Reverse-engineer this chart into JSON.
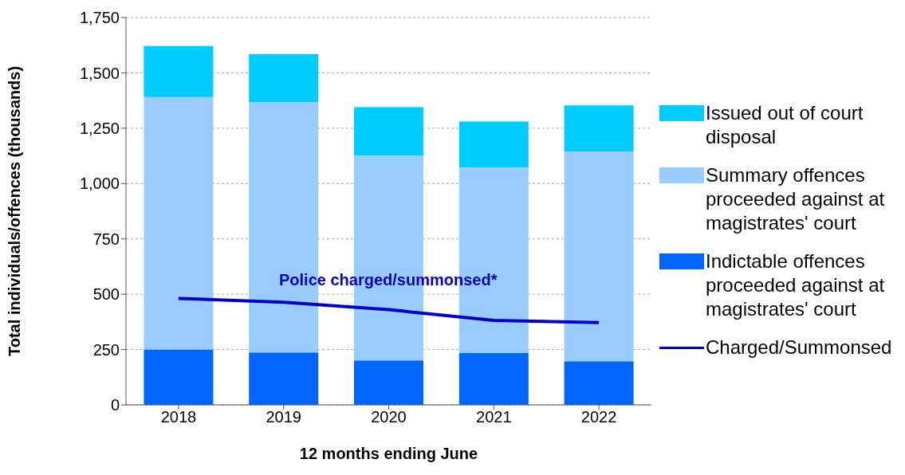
{
  "chart_data": {
    "type": "bar",
    "stacked": true,
    "xlabel": "12 months ending June",
    "ylabel": "Total individuals/offences (thousands)",
    "categories": [
      "2018",
      "2019",
      "2020",
      "2021",
      "2022"
    ],
    "series": [
      {
        "name": "Indictable offences proceeded against at magistrates' court",
        "color": "#0066ff",
        "values": [
          250,
          237,
          201,
          234,
          197
        ]
      },
      {
        "name": "Summary offences proceeded against at magistrates' court",
        "color": "#99ccff",
        "values": [
          1141,
          1130,
          926,
          839,
          948
        ]
      },
      {
        "name": "Issued out of court disposal",
        "color": "#00ccff",
        "values": [
          230,
          217,
          218,
          207,
          208
        ]
      },
      {
        "name": "Charged/Summonsed",
        "type": "line",
        "color": "#0000cc",
        "values": [
          481,
          464,
          430,
          382,
          372
        ]
      }
    ],
    "ylim": [
      0,
      1750
    ],
    "yticks": [
      0,
      250,
      500,
      750,
      {
        "value": 1000,
        "label": "1,000"
      },
      {
        "value": 1250,
        "label": "1,250"
      },
      {
        "value": 1500,
        "label": "1,500"
      },
      {
        "value": 1750,
        "label": "1,750"
      }
    ],
    "grid": "y",
    "legend": "right",
    "marker": "none",
    "line_style": "solid",
    "annotations": [
      "Police charged/summonsed*"
    ]
  }
}
